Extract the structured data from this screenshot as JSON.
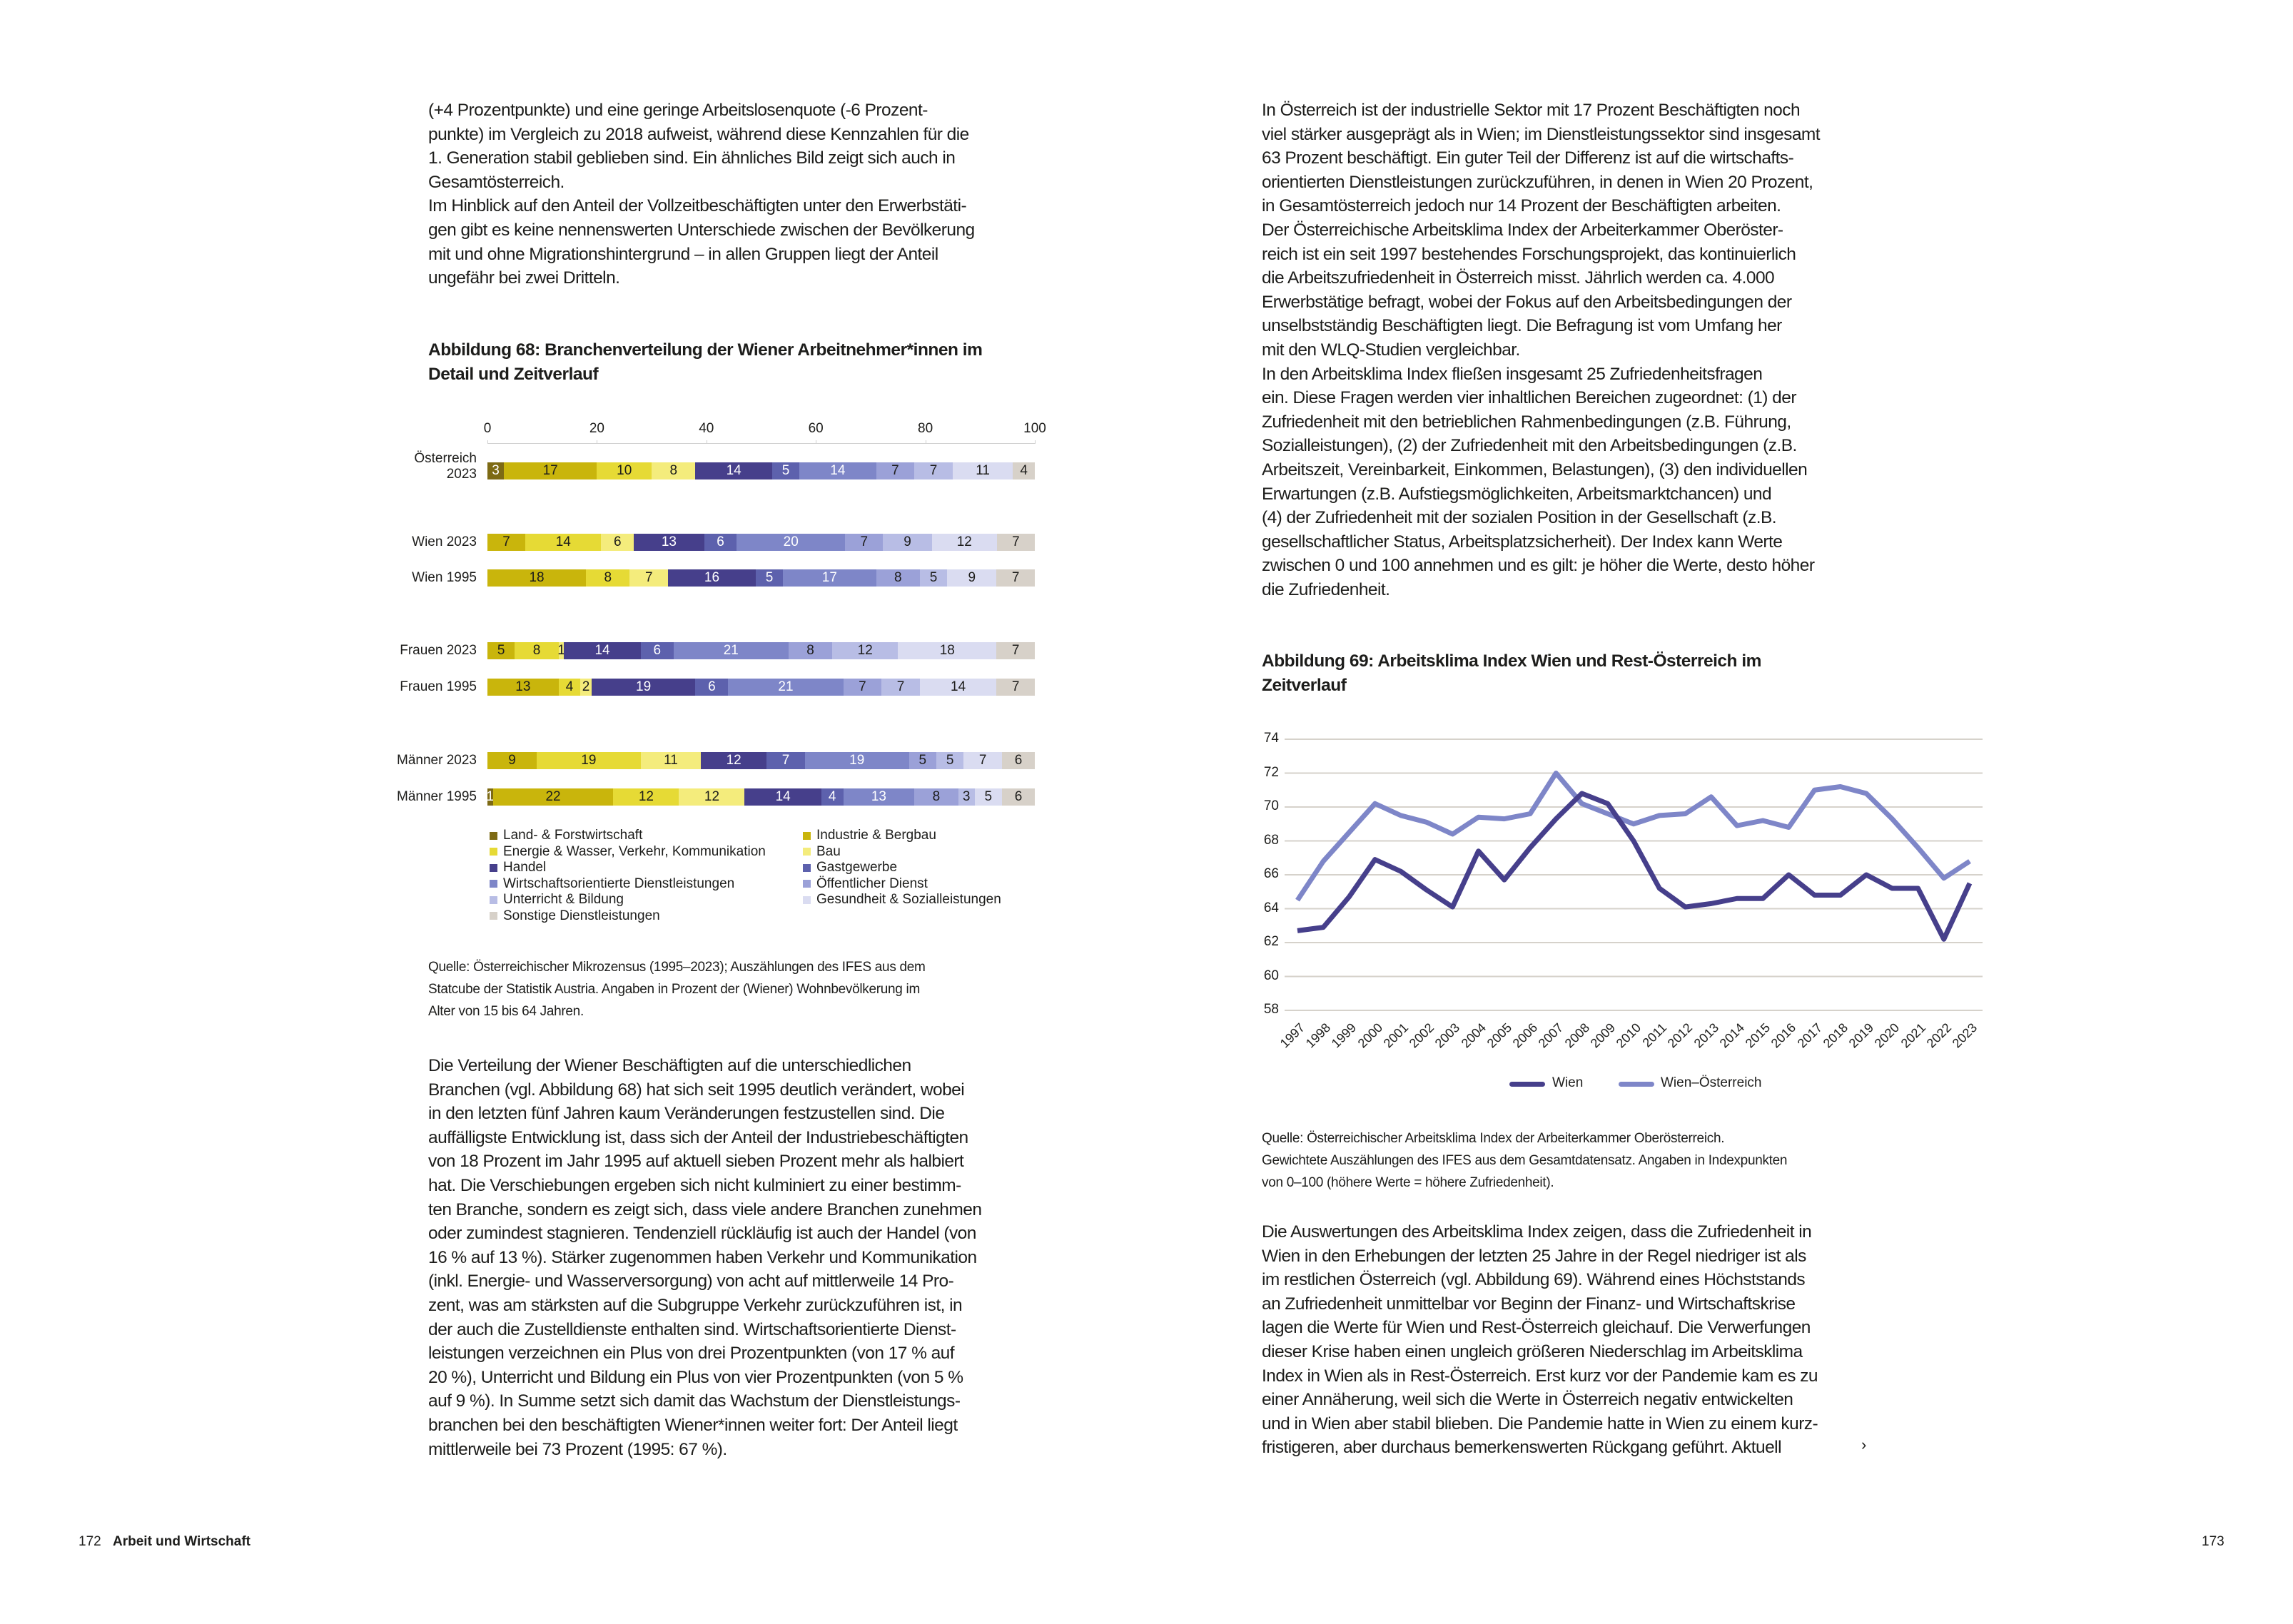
{
  "left": {
    "intro_lines": [
      "(+4 Prozentpunkte) und eine geringe Arbeitslosenquote (-6 Prozent-",
      "punkte) im Vergleich zu 2018 aufweist, während diese Kennzahlen für die",
      "1. Generation stabil geblieben sind. Ein ähnliches Bild zeigt sich auch in",
      "Gesamtösterreich.",
      "Im Hinblick auf den Anteil der Vollzeitbeschäftigten unter den Erwerbstäti-",
      "gen gibt es keine nennenswerten Unterschiede zwischen der Bevölkerung",
      "mit und ohne Migrationshintergrund – in allen Gruppen liegt der Anteil",
      "ungefähr bei zwei Dritteln."
    ],
    "figure_title_lines": [
      "Abbildung 68: Branchenverteilung der Wiener Arbeitnehmer*innen im",
      "Detail und Zeitverlauf"
    ],
    "source_lines": [
      "Quelle: Österreichischer Mikrozensus (1995–2023); Auszählungen des IFES aus dem",
      "Statcube der Statistik Austria. Angaben in Prozent der (Wiener) Wohnbevölkerung im",
      "Alter von 15 bis 64 Jahren."
    ],
    "body_lines": [
      "Die Verteilung der Wiener Beschäftigten auf die unterschiedlichen",
      "Branchen (vgl. Abbildung 68) hat sich seit 1995 deutlich verändert, wobei",
      "in den letzten fünf Jahren kaum Veränderungen festzustellen sind. Die",
      "auffälligste Entwicklung ist, dass sich der Anteil der Industriebeschäftigten",
      "von 18 Prozent im Jahr 1995 auf aktuell sieben Prozent mehr als halbiert",
      "hat. Die Verschiebungen ergeben sich nicht kulminiert zu einer bestimm-",
      "ten Branche, sondern es zeigt sich, dass viele andere Branchen zunehmen",
      "oder zumindest stagnieren. Tendenziell rückläufig ist auch der Handel (von",
      "16 % auf 13 %). Stärker zugenommen haben Verkehr und Kommunikation",
      "(inkl. Energie- und Wasserversorgung) von acht auf mittlerweile 14 Pro-",
      "zent, was am stärksten auf die Subgruppe Verkehr zurückzuführen ist, in",
      "der auch die Zustelldienste enthalten sind. Wirtschaftsorientierte Dienst-",
      "leistungen verzeichnen ein Plus von drei Prozentpunkten (von 17 % auf",
      "20 %), Unterricht und Bildung ein Plus von vier Prozentpunkten (von 5 %",
      "auf 9 %). In Summe setzt sich damit das Wachstum der Dienstleistungs-",
      "branchen bei den beschäftigten Wiener*innen weiter fort: Der Anteil liegt",
      "mittlerweile bei 73 Prozent (1995: 67 %)."
    ]
  },
  "right": {
    "intro_lines": [
      "In Österreich ist der industrielle Sektor mit 17 Prozent Beschäftigten noch",
      "viel stärker ausgeprägt als in Wien; im Dienstleistungssektor sind insgesamt",
      "63 Prozent beschäftigt. Ein guter Teil der Differenz ist auf die wirtschafts-",
      "orientierten Dienstleistungen zurückzuführen, in denen in Wien 20 Prozent,",
      "in Gesamtösterreich jedoch nur 14 Prozent der Beschäftigten arbeiten.",
      "Der Österreichische Arbeitsklima Index der Arbeiterkammer Oberöster-",
      "reich ist ein seit 1997 bestehendes Forschungsprojekt, das kontinuierlich",
      "die Arbeitszufriedenheit in Österreich misst. Jährlich werden ca. 4.000",
      "Erwerbstätige befragt, wobei der Fokus auf den Arbeitsbedingungen der",
      "unselbstständig Beschäftigten liegt. Die Befragung ist vom Umfang her",
      "mit den WLQ-Studien vergleichbar.",
      "In den Arbeitsklima Index fließen insgesamt 25 Zufriedenheitsfragen",
      "ein. Diese Fragen werden vier inhaltlichen Bereichen zugeordnet: (1) der",
      "Zufriedenheit mit den betrieblichen Rahmenbedingungen (z.B. Führung,",
      "Sozialleistungen), (2) der Zufriedenheit mit den Arbeitsbedingungen (z.B.",
      "Arbeitszeit, Vereinbarkeit, Einkommen, Belastungen), (3) den individuellen",
      "Erwartungen (z.B. Aufstiegsmöglichkeiten, Arbeitsmarktchancen) und",
      "(4) der Zufriedenheit mit der sozialen Position in der Gesellschaft (z.B.",
      "gesellschaftlicher Status, Arbeitsplatzsicherheit). Der Index kann Werte",
      "zwischen 0 und 100 annehmen und es gilt: je höher die Werte, desto höher",
      "die Zufriedenheit."
    ],
    "figure_title_lines": [
      "Abbildung 69: Arbeitsklima Index Wien und Rest-Österreich im",
      "Zeitverlauf"
    ],
    "source_lines": [
      "Quelle: Österreichischer Arbeitsklima Index der Arbeiterkammer Oberösterreich.",
      "Gewichtete Auszählungen des IFES aus dem Gesamtdatensatz. Angaben in Indexpunkten",
      "von 0–100 (höhere Werte = höhere Zufriedenheit)."
    ],
    "body_lines": [
      "Die Auswertungen des Arbeitsklima Index zeigen, dass die Zufriedenheit in",
      "Wien in den Erhebungen der letzten 25 Jahre in der Regel niedriger ist als",
      "im restlichen Österreich (vgl. Abbildung 69). Während eines Höchststands",
      "an Zufriedenheit unmittelbar vor Beginn der Finanz- und Wirtschaftskrise",
      "lagen die Werte für Wien und Rest-Österreich gleichauf. Die Verwerfungen",
      "dieser Krise haben einen ungleich größeren Niederschlag im Arbeitsklima",
      "Index in Wien als in Rest-Österreich. Erst kurz vor der Pandemie kam es zu",
      "einer Annäherung, weil sich die Werte in Österreich negativ entwickelten",
      "und in Wien aber stabil blieben. Die Pandemie hatte in Wien zu einem kurz-",
      "fristigeren, aber durchaus bemerkenswerten Rückgang geführt. Aktuell"
    ],
    "continue_glyph": "›"
  },
  "footer": {
    "left_page_number": "172",
    "section": "Arbeit und Wirtschaft",
    "right_page_number": "173"
  },
  "chart_data": [
    {
      "type": "bar",
      "orientation": "horizontal-stacked",
      "xlim": [
        0,
        100
      ],
      "xticks": [
        "0",
        "20",
        "40",
        "60",
        "80",
        "100"
      ],
      "categories": [
        "Österreich 2023",
        "Wien 2023",
        "Wien 1995",
        "Frauen 2023",
        "Frauen 1995",
        "Männer 2023",
        "Männer 1995"
      ],
      "category_lines": [
        [
          "Österreich",
          "2023"
        ],
        [
          "Wien 2023"
        ],
        [
          "Wien 1995"
        ],
        [
          "Frauen 2023"
        ],
        [
          "Frauen 1995"
        ],
        [
          "Männer 2023"
        ],
        [
          "Männer 1995"
        ]
      ],
      "legend_placement": "bottom",
      "series": [
        {
          "name": "Land- & Forstwirtschaft",
          "color": "#7d6a14",
          "values": [
            3,
            0,
            0,
            0,
            0,
            0,
            1
          ]
        },
        {
          "name": "Industrie & Bergbau",
          "color": "#c9b50c",
          "values": [
            17,
            7,
            18,
            5,
            13,
            9,
            22
          ]
        },
        {
          "name": "Energie & Wasser, Verkehr, Kommunikation",
          "color": "#e6da35",
          "values": [
            10,
            14,
            8,
            8,
            4,
            19,
            12
          ]
        },
        {
          "name": "Bau",
          "color": "#f4ec7c",
          "values": [
            8,
            6,
            7,
            1,
            2,
            11,
            12
          ]
        },
        {
          "name": "Handel",
          "color": "#463f8b",
          "values": [
            14,
            13,
            16,
            14,
            19,
            12,
            14
          ]
        },
        {
          "name": "Gastgewerbe",
          "color": "#5d61ad",
          "values": [
            5,
            6,
            5,
            6,
            6,
            7,
            4
          ]
        },
        {
          "name": "Wirtschaftsorientierte Dienstleistungen",
          "color": "#7e86c8",
          "values": [
            14,
            20,
            17,
            21,
            21,
            19,
            13
          ]
        },
        {
          "name": "Öffentlicher Dienst",
          "color": "#9ba1d8",
          "values": [
            7,
            7,
            8,
            8,
            7,
            5,
            8
          ]
        },
        {
          "name": "Unterricht & Bildung",
          "color": "#b8bde5",
          "values": [
            7,
            9,
            5,
            12,
            7,
            5,
            3
          ]
        },
        {
          "name": "Gesundheit & Sozialleistungen",
          "color": "#dadcf1",
          "values": [
            11,
            12,
            9,
            18,
            14,
            7,
            5
          ]
        },
        {
          "name": "Sonstige Dienstleistungen",
          "color": "#d7d1c9",
          "values": [
            4,
            7,
            7,
            7,
            7,
            6,
            6
          ]
        }
      ],
      "legend_order": [
        0,
        1,
        2,
        3,
        4,
        5,
        6,
        7,
        8,
        9,
        10
      ]
    },
    {
      "type": "line",
      "x": [
        "1997",
        "1998",
        "1999",
        "2000",
        "2001",
        "2002",
        "2003",
        "2004",
        "2005",
        "2006",
        "2007",
        "2008",
        "2009",
        "2010",
        "2011",
        "2012",
        "2013",
        "2014",
        "2015",
        "2016",
        "2017",
        "2018",
        "2019",
        "2020",
        "2021",
        "2022",
        "2023"
      ],
      "ylim": [
        58,
        74
      ],
      "yticks": [
        "74",
        "72",
        "70",
        "68",
        "66",
        "64",
        "62",
        "60",
        "58"
      ],
      "grid": true,
      "legend_placement": "bottom",
      "series": [
        {
          "name": "Wien",
          "color": "#463f8b",
          "values": [
            62.7,
            62.9,
            64.7,
            66.9,
            66.2,
            65.1,
            64.1,
            67.4,
            65.7,
            67.6,
            69.3,
            70.8,
            70.2,
            68.0,
            65.2,
            64.1,
            64.3,
            64.6,
            64.6,
            66.0,
            64.8,
            64.8,
            66.0,
            65.2,
            65.2,
            62.2,
            65.5
          ]
        },
        {
          "name": "Wien–Österreich",
          "color": "#7e86c8",
          "values": [
            64.5,
            66.8,
            68.5,
            70.2,
            69.5,
            69.1,
            68.4,
            69.4,
            69.3,
            69.6,
            72.0,
            70.2,
            69.6,
            69.0,
            69.5,
            69.6,
            70.6,
            68.9,
            69.2,
            68.8,
            71.0,
            71.2,
            70.8,
            69.3,
            67.6,
            65.8,
            66.8
          ]
        }
      ]
    }
  ]
}
